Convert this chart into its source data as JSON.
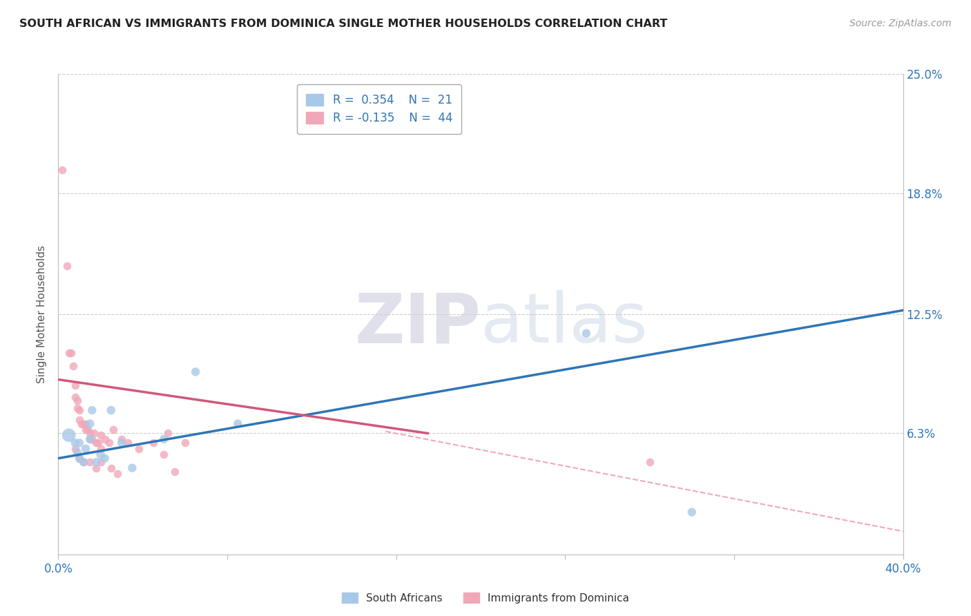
{
  "title": "SOUTH AFRICAN VS IMMIGRANTS FROM DOMINICA SINGLE MOTHER HOUSEHOLDS CORRELATION CHART",
  "source": "Source: ZipAtlas.com",
  "ylabel": "Single Mother Households",
  "xmin": 0.0,
  "xmax": 0.4,
  "ymin": 0.0,
  "ymax": 0.25,
  "yticks": [
    0.0,
    0.063,
    0.125,
    0.188,
    0.25
  ],
  "ytick_labels": [
    "",
    "6.3%",
    "12.5%",
    "18.8%",
    "25.0%"
  ],
  "R_blue": 0.354,
  "N_blue": 21,
  "R_pink": -0.135,
  "N_pink": 44,
  "blue_color": "#A8C8E8",
  "pink_color": "#F0A8B8",
  "blue_line_color": "#2E75B6",
  "pink_line_color": "#D05878",
  "dashed_line_color": "#F0A8B8",
  "blue_line_x": [
    0.0,
    0.4
  ],
  "blue_line_y": [
    0.05,
    0.127
  ],
  "pink_line_x": [
    0.0,
    0.175
  ],
  "pink_line_y": [
    0.091,
    0.063
  ],
  "dash_line_x": [
    0.155,
    0.4
  ],
  "dash_line_y": [
    0.064,
    0.012
  ],
  "blue_scatter_x": [
    0.005,
    0.008,
    0.009,
    0.01,
    0.01,
    0.012,
    0.013,
    0.015,
    0.015,
    0.016,
    0.018,
    0.02,
    0.022,
    0.025,
    0.03,
    0.035,
    0.05,
    0.065,
    0.085,
    0.25,
    0.3
  ],
  "blue_scatter_y": [
    0.062,
    0.058,
    0.053,
    0.058,
    0.05,
    0.048,
    0.055,
    0.06,
    0.068,
    0.075,
    0.048,
    0.052,
    0.05,
    0.075,
    0.058,
    0.045,
    0.06,
    0.095,
    0.068,
    0.115,
    0.022
  ],
  "blue_scatter_size": [
    200,
    80,
    80,
    80,
    80,
    80,
    80,
    80,
    80,
    80,
    80,
    80,
    80,
    80,
    80,
    80,
    80,
    80,
    80,
    80,
    80
  ],
  "pink_scatter_x": [
    0.002,
    0.004,
    0.005,
    0.006,
    0.007,
    0.008,
    0.008,
    0.009,
    0.009,
    0.01,
    0.01,
    0.011,
    0.012,
    0.013,
    0.013,
    0.014,
    0.015,
    0.015,
    0.016,
    0.017,
    0.018,
    0.019,
    0.02,
    0.02,
    0.022,
    0.024,
    0.026,
    0.03,
    0.033,
    0.038,
    0.045,
    0.052,
    0.06,
    0.008,
    0.01,
    0.012,
    0.015,
    0.018,
    0.02,
    0.025,
    0.028,
    0.05,
    0.055,
    0.28
  ],
  "pink_scatter_y": [
    0.2,
    0.15,
    0.105,
    0.105,
    0.098,
    0.088,
    0.082,
    0.08,
    0.076,
    0.075,
    0.07,
    0.068,
    0.068,
    0.068,
    0.065,
    0.065,
    0.063,
    0.06,
    0.06,
    0.063,
    0.058,
    0.058,
    0.062,
    0.055,
    0.06,
    0.058,
    0.065,
    0.06,
    0.058,
    0.055,
    0.058,
    0.063,
    0.058,
    0.055,
    0.05,
    0.048,
    0.048,
    0.045,
    0.048,
    0.045,
    0.042,
    0.052,
    0.043,
    0.048
  ]
}
